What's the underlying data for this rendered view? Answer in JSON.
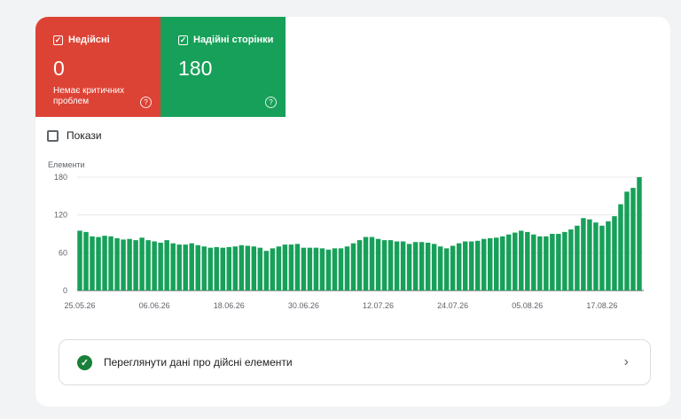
{
  "tiles": {
    "invalid": {
      "label": "Недійсні",
      "value": "0",
      "subtitle": "Немає критичних проблем",
      "color": "#dd4335"
    },
    "valid": {
      "label": "Надійні сторінки",
      "value": "180",
      "color": "#17a059"
    }
  },
  "impressions_label": "Покази",
  "chart_data": {
    "type": "bar",
    "ylabel": "Елементи",
    "ylim": [
      0,
      180
    ],
    "yticks": [
      0,
      60,
      120,
      180
    ],
    "xtick_labels": [
      "25.05.26",
      "06.06.26",
      "18.06.26",
      "30.06.26",
      "12.07.26",
      "24.07.26",
      "05.08.26",
      "17.08.26"
    ],
    "series": [
      {
        "color": "#17a059",
        "values": [
          95,
          93,
          86,
          85,
          87,
          86,
          83,
          81,
          82,
          80,
          84,
          80,
          78,
          76,
          80,
          75,
          73,
          73,
          75,
          72,
          70,
          68,
          69,
          68,
          69,
          70,
          72,
          71,
          70,
          68,
          63,
          67,
          70,
          73,
          73,
          74,
          68,
          68,
          68,
          67,
          65,
          67,
          67,
          70,
          75,
          80,
          85,
          85,
          82,
          80,
          80,
          78,
          78,
          74,
          77,
          77,
          76,
          74,
          70,
          67,
          71,
          75,
          78,
          78,
          79,
          82,
          83,
          84,
          86,
          89,
          92,
          95,
          93,
          89,
          86,
          86,
          90,
          90,
          93,
          97,
          103,
          115,
          113,
          108,
          103,
          110,
          118,
          137,
          157,
          163,
          180
        ]
      }
    ]
  },
  "details_row": {
    "text": "Переглянути дані про дійсні елементи",
    "icon": "check-circle-icon"
  }
}
